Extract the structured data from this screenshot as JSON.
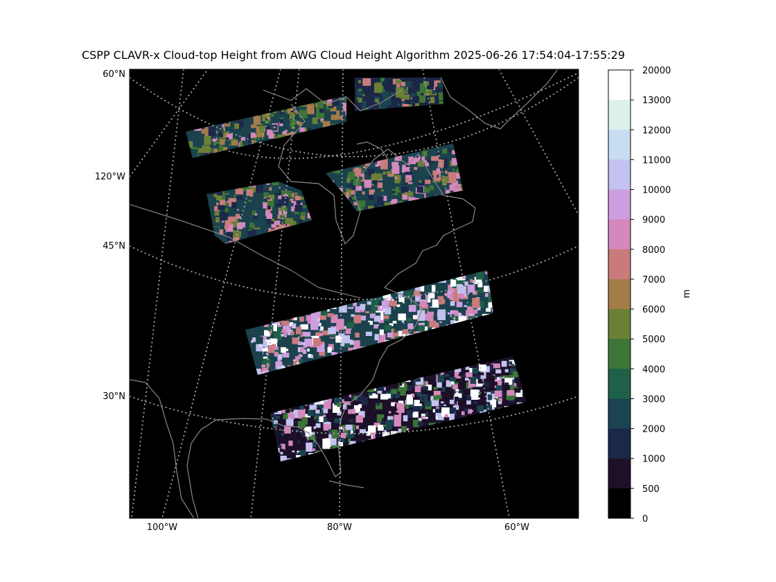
{
  "figure": {
    "title": "CSPP CLAVR-x Cloud-top Height from AWG Cloud Height Algorithm 2025-06-26 17:54:04-17:55:29"
  },
  "map": {
    "projection": "conic",
    "background": "#000000",
    "coastline_color": "#8a8a8a",
    "gridline_color": "#aaaaaa",
    "gridline_style": "dotted",
    "lat_labels": [
      "60°N",
      "45°N",
      "30°N"
    ],
    "lon_label_left": "120°W",
    "lon_labels_bottom": [
      "100°W",
      "80°W",
      "60°W"
    ]
  },
  "colorbar": {
    "label": "m",
    "ticks": [
      "20000",
      "13000",
      "12000",
      "11000",
      "10000",
      "9000",
      "8000",
      "7000",
      "6000",
      "5000",
      "4000",
      "3000",
      "2000",
      "1000",
      "500",
      "0"
    ],
    "colors_top_to_bottom": [
      "#ffffff",
      "#dcf1ec",
      "#c7ddf2",
      "#c3c2f0",
      "#ce9fe0",
      "#d488bd",
      "#c97b7c",
      "#a37c4a",
      "#6c7f36",
      "#3c7536",
      "#1f6048",
      "#1b4450",
      "#1c2849",
      "#1c1129",
      "#000000"
    ]
  },
  "swaths": [
    {
      "name": "swath-1",
      "palette": [
        "#1b4450",
        "#6c7f36",
        "#3c7536",
        "#d488bd",
        "#1c2849",
        "#a37c4a"
      ]
    },
    {
      "name": "swath-2",
      "palette": [
        "#1c2849",
        "#3c7536",
        "#6c7f36",
        "#c97b7c",
        "#1b4450"
      ]
    },
    {
      "name": "swath-3",
      "palette": [
        "#1b4450",
        "#3c7536",
        "#d488bd",
        "#c97b7c",
        "#6c7f36",
        "#1c2849"
      ]
    },
    {
      "name": "swath-4",
      "palette": [
        "#1b4450",
        "#c3c2f0",
        "#d488bd",
        "#ffffff",
        "#1f6048",
        "#ce9fe0",
        "#c97b7c"
      ]
    },
    {
      "name": "swath-5",
      "palette": [
        "#1c1129",
        "#1c2849",
        "#c3c2f0",
        "#ffffff",
        "#d488bd",
        "#1b4450",
        "#3c7536"
      ]
    }
  ]
}
